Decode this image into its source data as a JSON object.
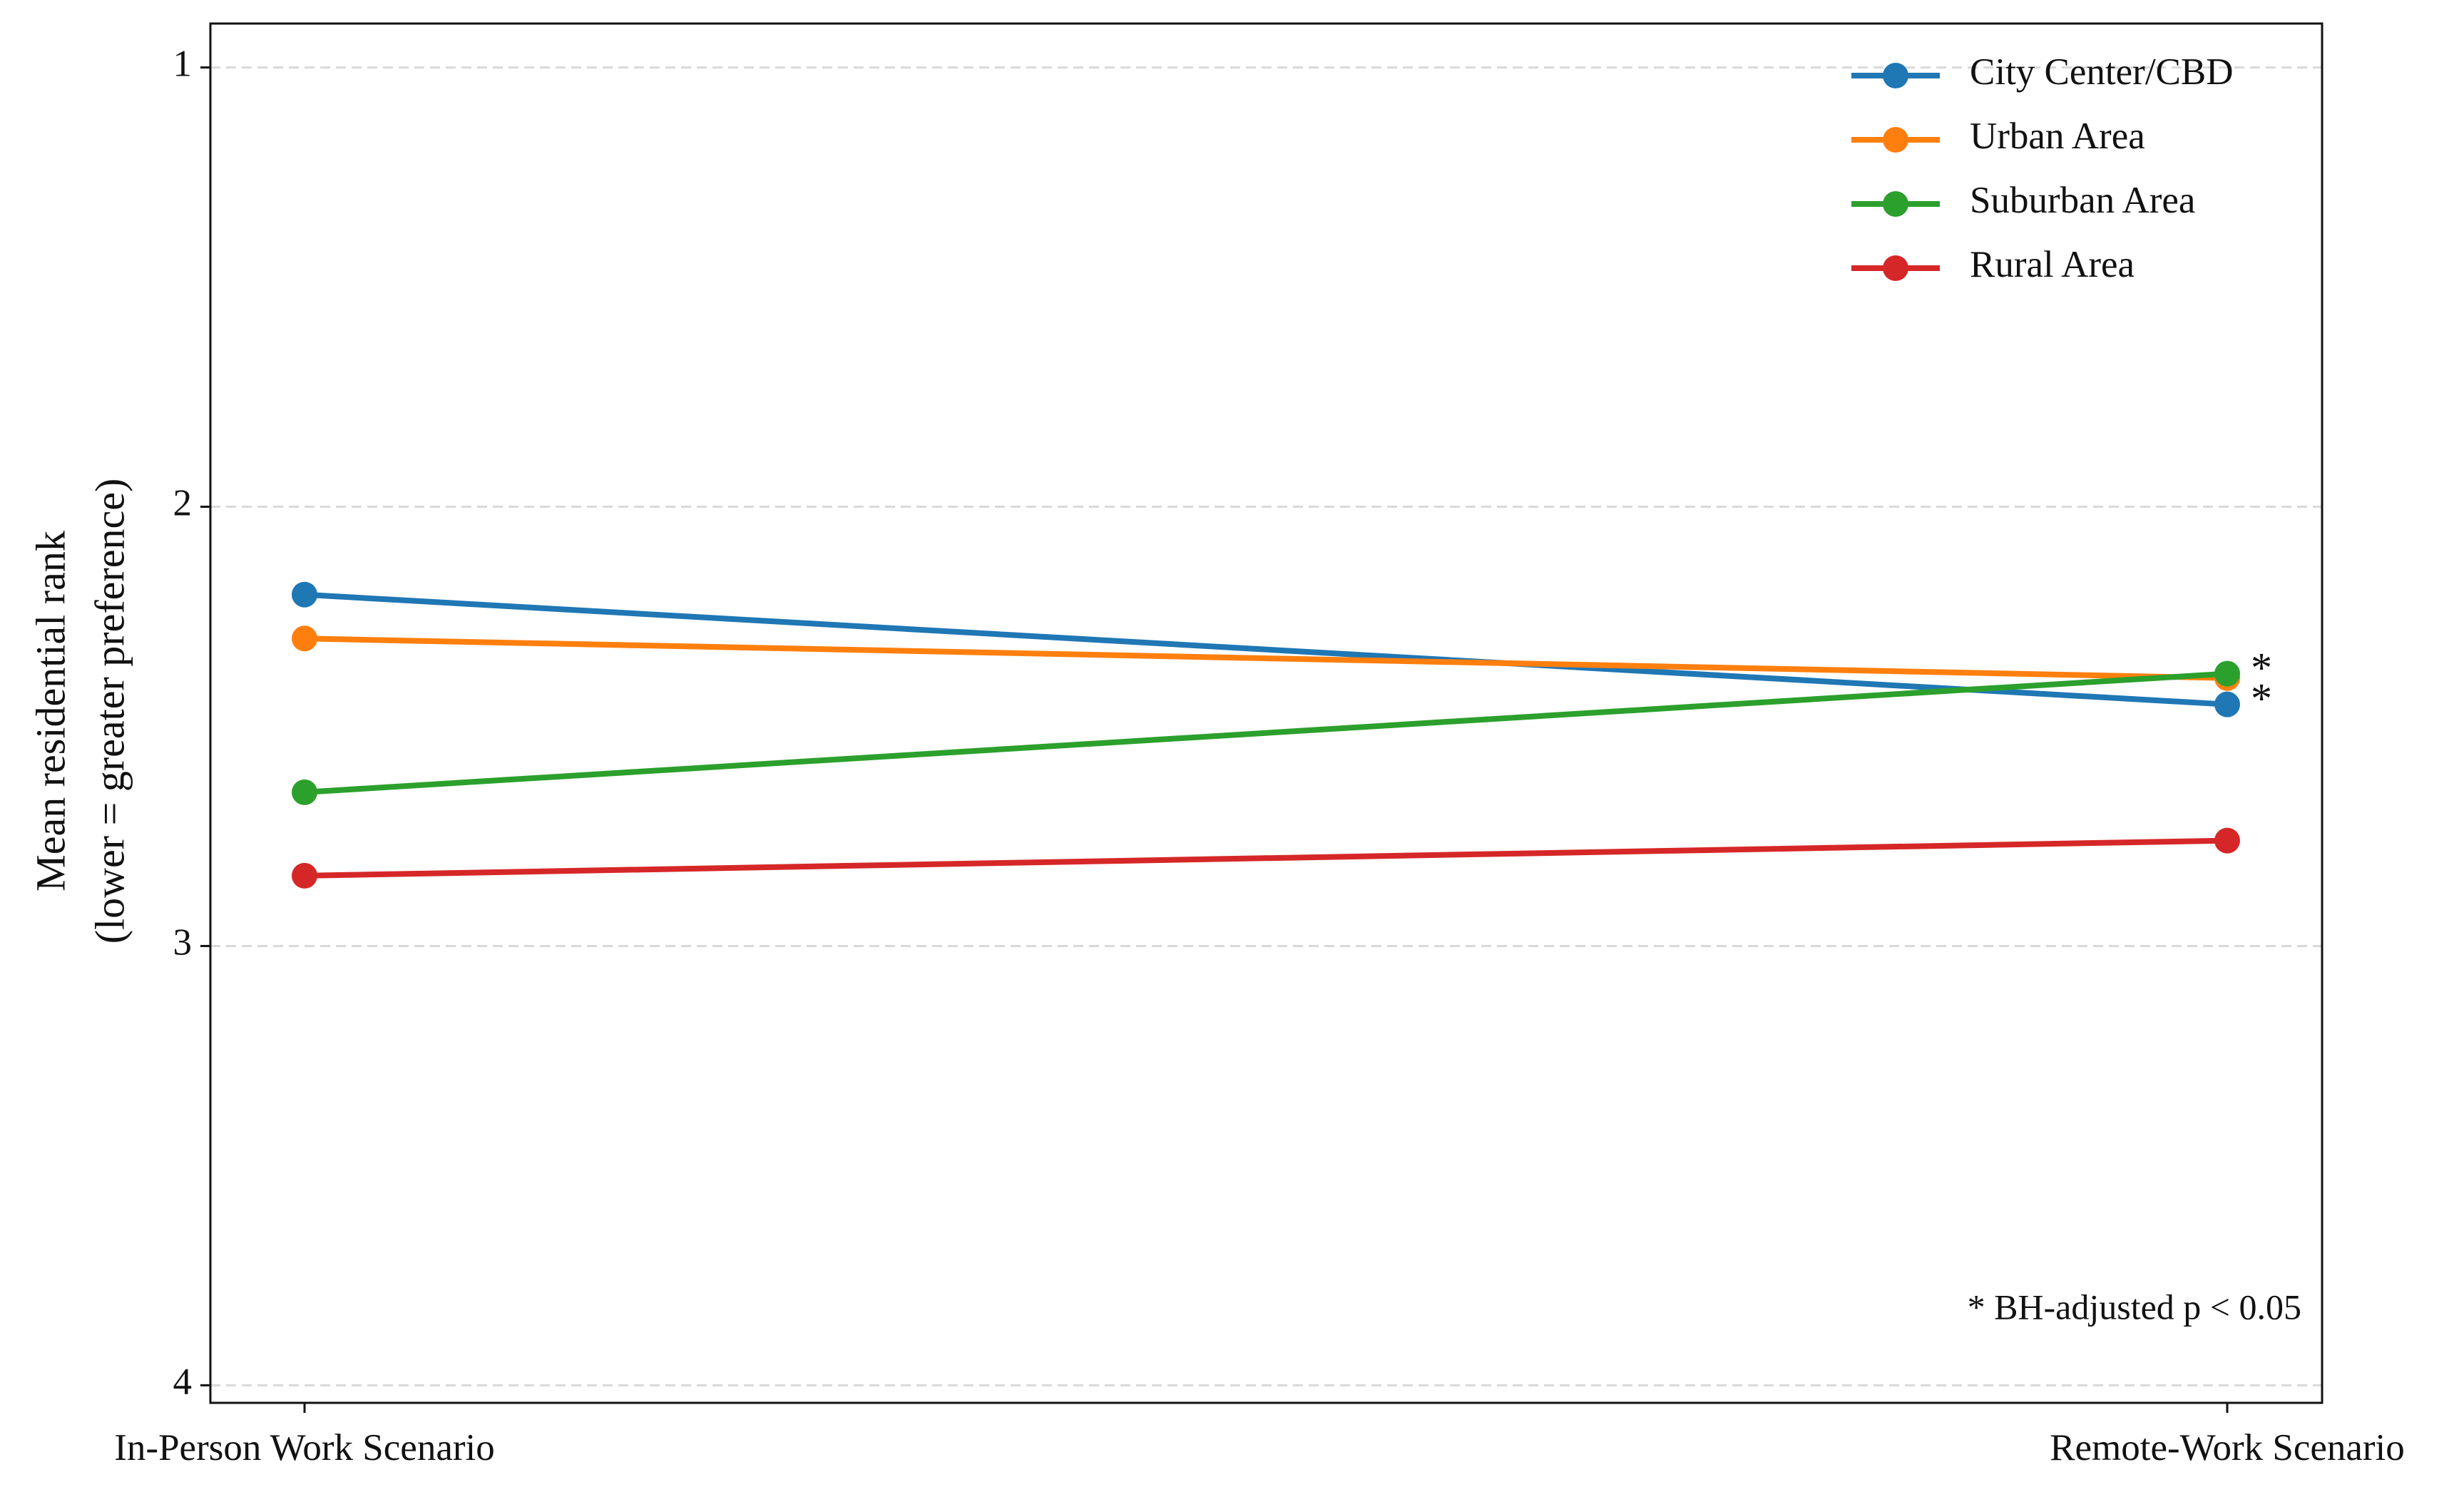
{
  "chart_data": {
    "type": "line",
    "ylabel": [
      "Mean residential rank",
      "(lower = greater preference)"
    ],
    "categories": [
      "In-Person Work Scenario",
      "Remote-Work Scenario"
    ],
    "series": [
      {
        "name": "City Center/CBD",
        "color": "#1f77b4",
        "values": [
          2.2,
          2.45
        ],
        "significant": true
      },
      {
        "name": "Urban Area",
        "color": "#ff7f0e",
        "values": [
          2.3,
          2.39
        ],
        "significant": false
      },
      {
        "name": "Suburban Area",
        "color": "#2ca02c",
        "values": [
          2.65,
          2.38
        ],
        "significant": true
      },
      {
        "name": "Rural Area",
        "color": "#d62728",
        "values": [
          2.84,
          2.76
        ],
        "significant": false
      }
    ],
    "significance_marker": "*",
    "note": "* BH-adjusted p < 0.05",
    "ylim": [
      0.9,
      4.04
    ],
    "yticks": [
      1,
      2,
      3,
      4
    ],
    "y_inverted": true,
    "grid": true,
    "legend": "upper right"
  }
}
